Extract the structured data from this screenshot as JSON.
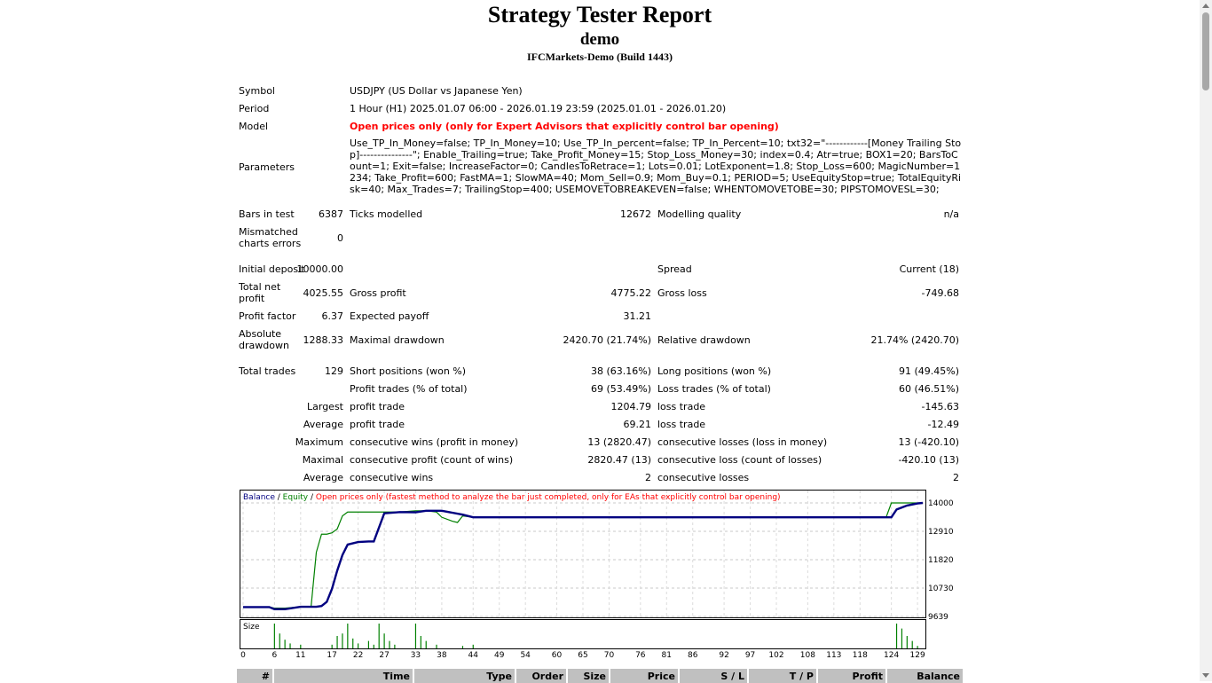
{
  "header": {
    "title": "Strategy Tester Report",
    "subtitle": "demo",
    "server": "IFCMarkets-Demo (Build 1443)"
  },
  "settings": {
    "symbol_label": "Symbol",
    "symbol_value": "USDJPY (US Dollar vs Japanese Yen)",
    "period_label": "Period",
    "period_value": "1 Hour (H1) 2025.01.07 06:00 - 2026.01.19 23:59 (2025.01.01 - 2026.01.20)",
    "model_label": "Model",
    "model_value": "Open prices only (only for Expert Advisors that explicitly control bar opening)",
    "parameters_label": "Parameters",
    "parameters_value": "Use_TP_In_Money=false; TP_In_Money=10; Use_TP_In_percent=false; TP_In_Percent=10; txt32=\"------------[Money Trailing Stop]---------------\"; Enable_Trailing=true; Take_Profit_Money=15; Stop_Loss_Money=30; index=0.4; Atr=true; BOX1=20; BarsToCount=1; Exit=false; IncreaseFactor=0; CandlesToRetrace=1; Lots=0.01; LotExponent=1.8; Stop_Loss=600; MagicNumber=1234; Take_Profit=600; FastMA=1; SlowMA=40; Mom_Sell=0.9; Mom_Buy=0.1; PERIOD=5; UseEquityStop=true; TotalEquityRisk=40; Max_Trades=7; TrailingStop=400; USEMOVETOBREAKEVEN=false; WHENTOMOVETOBE=30; PIPSTOMOVESL=30;"
  },
  "stats": {
    "bars_label": "Bars in test",
    "bars_value": "6387",
    "ticks_label": "Ticks modelled",
    "ticks_value": "12672",
    "quality_label": "Modelling quality",
    "quality_value": "n/a",
    "mismatch_label_1": "Mismatched",
    "mismatch_label_2": "charts errors",
    "mismatch_value": "0",
    "deposit_label": "Initial deposit",
    "deposit_value": "10000.00",
    "spread_label": "Spread",
    "spread_value": "Current (18)",
    "netprofit_label_1": "Total net",
    "netprofit_label_2": "profit",
    "netprofit_value": "4025.55",
    "grossprofit_label": "Gross profit",
    "grossprofit_value": "4775.22",
    "grossloss_label": "Gross loss",
    "grossloss_value": "-749.68",
    "pf_label": "Profit factor",
    "pf_value": "6.37",
    "payoff_label": "Expected payoff",
    "payoff_value": "31.21",
    "absdd_label_1": "Absolute",
    "absdd_label_2": "drawdown",
    "absdd_value": "1288.33",
    "maxdd_label": "Maximal drawdown",
    "maxdd_value": "2420.70 (21.74%)",
    "reldd_label": "Relative drawdown",
    "reldd_value": "21.74% (2420.70)",
    "trades_label": "Total trades",
    "trades_value": "129",
    "short_label": "Short positions (won %)",
    "short_value": "38 (63.16%)",
    "long_label": "Long positions (won %)",
    "long_value": "91 (49.45%)",
    "ptrades_label": "Profit trades (% of total)",
    "ptrades_value": "69 (53.49%)",
    "ltrades_label": "Loss trades (% of total)",
    "ltrades_value": "60 (46.51%)",
    "largest_label": "Largest",
    "largest_pt_label": "profit trade",
    "largest_pt_value": "1204.79",
    "largest_lt_label": "loss trade",
    "largest_lt_value": "-145.63",
    "average_label": "Average",
    "average_pt_label": "profit trade",
    "average_pt_value": "69.21",
    "average_lt_label": "loss trade",
    "average_lt_value": "-12.49",
    "maximum_label": "Maximum",
    "max_cw_label": "consecutive wins (profit in money)",
    "max_cw_value": "13 (2820.47)",
    "max_cl_label": "consecutive losses (loss in money)",
    "max_cl_value": "13 (-420.10)",
    "maximal_label": "Maximal",
    "maxl_cp_label": "consecutive profit (count of wins)",
    "maxl_cp_value": "2820.47 (13)",
    "maxl_cl_label": "consecutive loss (count of losses)",
    "maxl_cl_value": "-420.10 (13)",
    "average2_label": "Average",
    "avg_cw_label": "consecutive wins",
    "avg_cw_value": "2",
    "avg_cl_label": "consecutive losses",
    "avg_cl_value": "2"
  },
  "chart_data": {
    "type": "line",
    "legend": {
      "balance": "Balance",
      "sep1": " / ",
      "equity": "Equity",
      "sep2": " / ",
      "note": "Open prices only (fastest method to analyze the bar just completed, only for EAs that explicitly control bar opening)"
    },
    "colors": {
      "balance": "#000080",
      "equity": "#008000",
      "note": "#ff0000",
      "size": "#008000"
    },
    "ylim": [
      9639,
      14000
    ],
    "y_ticks": [
      "14000",
      "12910",
      "11820",
      "10730",
      "9639"
    ],
    "x_ticks": [
      "0",
      "6",
      "11",
      "17",
      "22",
      "27",
      "33",
      "38",
      "44",
      "49",
      "54",
      "60",
      "65",
      "70",
      "76",
      "81",
      "86",
      "92",
      "97",
      "102",
      "108",
      "113",
      "118",
      "124",
      "129"
    ],
    "series": [
      {
        "name": "Balance",
        "x": [
          0,
          5,
          6,
          8,
          11,
          14,
          15,
          16,
          17,
          18,
          19,
          20,
          22,
          24,
          25,
          27,
          30,
          33,
          35,
          38,
          42,
          44,
          46,
          60,
          80,
          100,
          120,
          123,
          124,
          125,
          127,
          129,
          130
        ],
        "y": [
          10000,
          10000,
          9920,
          9920,
          10010,
          10010,
          10040,
          10200,
          10700,
          11400,
          12000,
          12400,
          12500,
          12520,
          12520,
          13600,
          13650,
          13640,
          13700,
          13700,
          13550,
          13450,
          13450,
          13450,
          13450,
          13450,
          13450,
          13450,
          13450,
          13750,
          13900,
          13980,
          14000
        ]
      },
      {
        "name": "Equity",
        "x": [
          0,
          5,
          6,
          8,
          11,
          12,
          13,
          14,
          15,
          16,
          17,
          18,
          19,
          20,
          22,
          25,
          27,
          30,
          33,
          35,
          37,
          38,
          40,
          41,
          42,
          44,
          60,
          80,
          100,
          120,
          122,
          123,
          124,
          127,
          130
        ],
        "y": [
          10000,
          10000,
          9960,
          9960,
          10010,
          10010,
          10010,
          12100,
          12800,
          12800,
          12850,
          13000,
          13500,
          13650,
          13650,
          13650,
          13650,
          13650,
          13700,
          13700,
          13650,
          13450,
          13300,
          13250,
          13500,
          13450,
          13450,
          13450,
          13450,
          13450,
          13450,
          13450,
          14000,
          14000,
          14000
        ]
      }
    ],
    "size_label": "Size",
    "size_bars": [
      {
        "x": 6,
        "v": 1.0
      },
      {
        "x": 7,
        "v": 0.6
      },
      {
        "x": 8,
        "v": 0.35
      },
      {
        "x": 9,
        "v": 0.2
      },
      {
        "x": 11,
        "v": 0.15
      },
      {
        "x": 17,
        "v": 0.15
      },
      {
        "x": 18,
        "v": 0.5
      },
      {
        "x": 19,
        "v": 0.6
      },
      {
        "x": 20,
        "v": 1.0
      },
      {
        "x": 21,
        "v": 0.4
      },
      {
        "x": 22,
        "v": 0.2
      },
      {
        "x": 24,
        "v": 0.3
      },
      {
        "x": 25,
        "v": 0.15
      },
      {
        "x": 26,
        "v": 1.0
      },
      {
        "x": 27,
        "v": 0.6
      },
      {
        "x": 28,
        "v": 0.3
      },
      {
        "x": 29,
        "v": 0.15
      },
      {
        "x": 33,
        "v": 1.0
      },
      {
        "x": 34,
        "v": 0.5
      },
      {
        "x": 35,
        "v": 0.3
      },
      {
        "x": 37,
        "v": 0.15
      },
      {
        "x": 42,
        "v": 0.1
      },
      {
        "x": 44,
        "v": 0.15
      },
      {
        "x": 125,
        "v": 1.0
      },
      {
        "x": 126,
        "v": 0.8
      },
      {
        "x": 127,
        "v": 0.5
      },
      {
        "x": 128,
        "v": 0.3
      },
      {
        "x": 129,
        "v": 0.1
      }
    ]
  },
  "table": {
    "headers": [
      "#",
      "Time",
      "Type",
      "Order",
      "Size",
      "Price",
      "S / L",
      "T / P",
      "Profit",
      "Balance"
    ]
  }
}
